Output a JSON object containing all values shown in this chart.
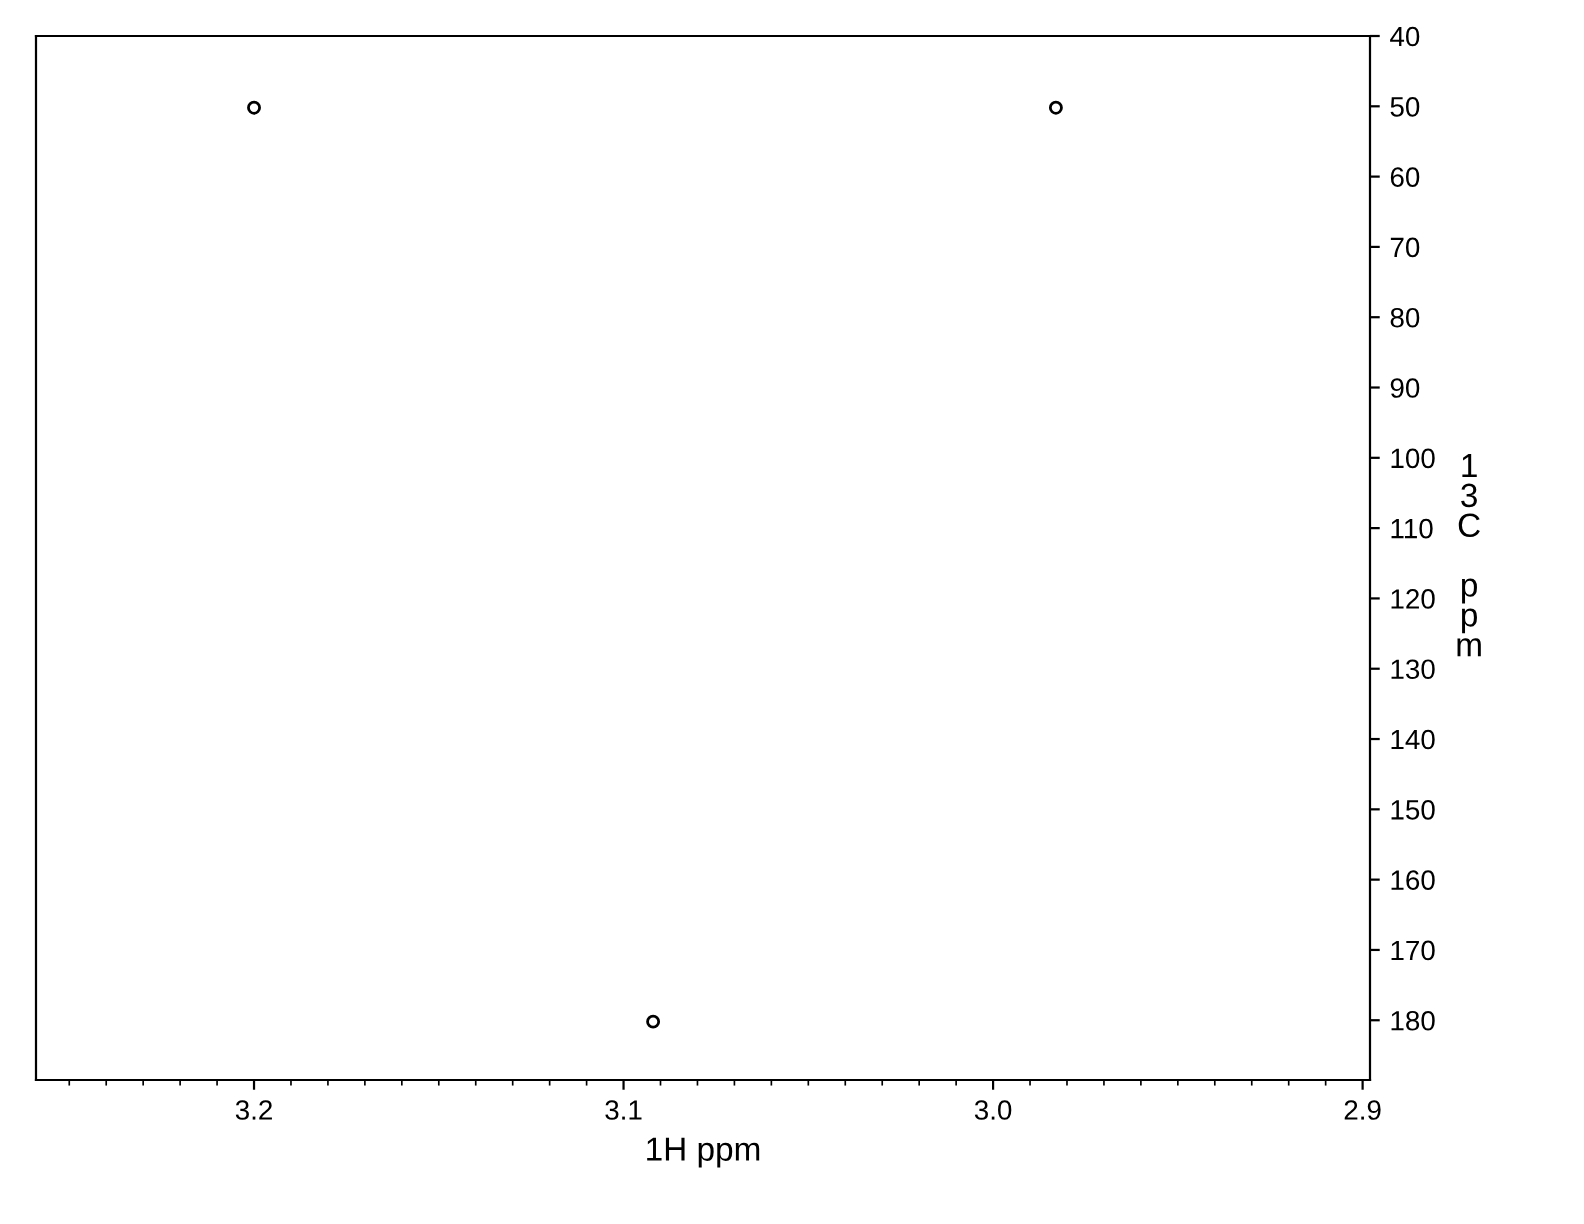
{
  "chart_data": {
    "type": "scatter",
    "xlabel": "1H ppm",
    "ylabel": "13C ppm",
    "x": [
      3.2,
      2.983,
      3.092
    ],
    "series": [
      {
        "color": "#000000",
        "values": [
          50.2,
          50.2,
          180.2
        ]
      }
    ],
    "xlim": [
      3.259,
      2.898
    ],
    "xticks": [
      3.2,
      3.1,
      {
        "value": 3.0,
        "label": "3.0"
      },
      2.9
    ],
    "marker": "circle",
    "ylim": [
      188.5,
      40
    ],
    "yticks": [
      40,
      50,
      60,
      70,
      80,
      90,
      100,
      110,
      120,
      130,
      140,
      150,
      160,
      170,
      180
    ],
    "grid": false,
    "legend": false
  }
}
